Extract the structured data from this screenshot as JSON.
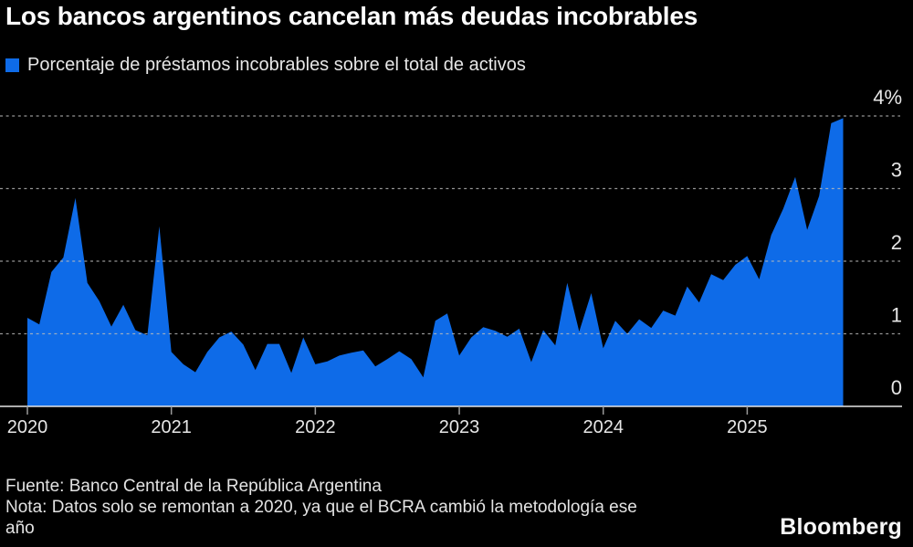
{
  "header": {
    "title": "Los bancos argentinos cancelan más deudas incobrables",
    "legend": {
      "label": "Porcentaje de préstamos incobrables sobre el total de activos",
      "swatch_color": "#0e6be8"
    }
  },
  "chart_data": {
    "type": "area",
    "title": "Los bancos argentinos cancelan más deudas incobrables",
    "series_name": "Porcentaje de préstamos incobrables sobre el total de activos",
    "unit": "%",
    "frequency": "monthly",
    "x_start": "2020-01",
    "x_end": "2025-09",
    "x_tick_labels": [
      "2020",
      "2021",
      "2022",
      "2023",
      "2024",
      "2025"
    ],
    "y_tick_labels": [
      "0",
      "1",
      "2",
      "3",
      "4%"
    ],
    "ylim": [
      0,
      4
    ],
    "grid": "horizontal-dashed",
    "legend_position": "top-left",
    "values": [
      1.22,
      1.13,
      1.85,
      2.05,
      2.87,
      1.7,
      1.45,
      1.1,
      1.4,
      1.05,
      0.98,
      2.48,
      0.75,
      0.58,
      0.47,
      0.75,
      0.95,
      1.03,
      0.85,
      0.5,
      0.86,
      0.86,
      0.46,
      0.95,
      0.58,
      0.62,
      0.7,
      0.74,
      0.77,
      0.55,
      0.65,
      0.76,
      0.65,
      0.4,
      1.18,
      1.28,
      0.7,
      0.95,
      1.09,
      1.04,
      0.96,
      1.07,
      0.61,
      1.05,
      0.84,
      1.7,
      1.03,
      1.56,
      0.8,
      1.18,
      1.0,
      1.2,
      1.08,
      1.32,
      1.25,
      1.65,
      1.43,
      1.82,
      1.74,
      1.95,
      2.07,
      1.75,
      2.36,
      2.72,
      3.16,
      2.43,
      2.9,
      3.9,
      3.97
    ],
    "colors": {
      "area": "#0e6be8",
      "background": "#000000",
      "grid": "#bbbbbb",
      "axis": "#e6e6e6",
      "tick": "#9a9a9a",
      "text": "#e6e6e6"
    }
  },
  "footer": {
    "source": "Fuente: Banco Central de la República Argentina",
    "note": "Nota: Datos solo se remontan a 2020, ya que el BCRA cambió la metodología ese año",
    "brand": "Bloomberg"
  }
}
